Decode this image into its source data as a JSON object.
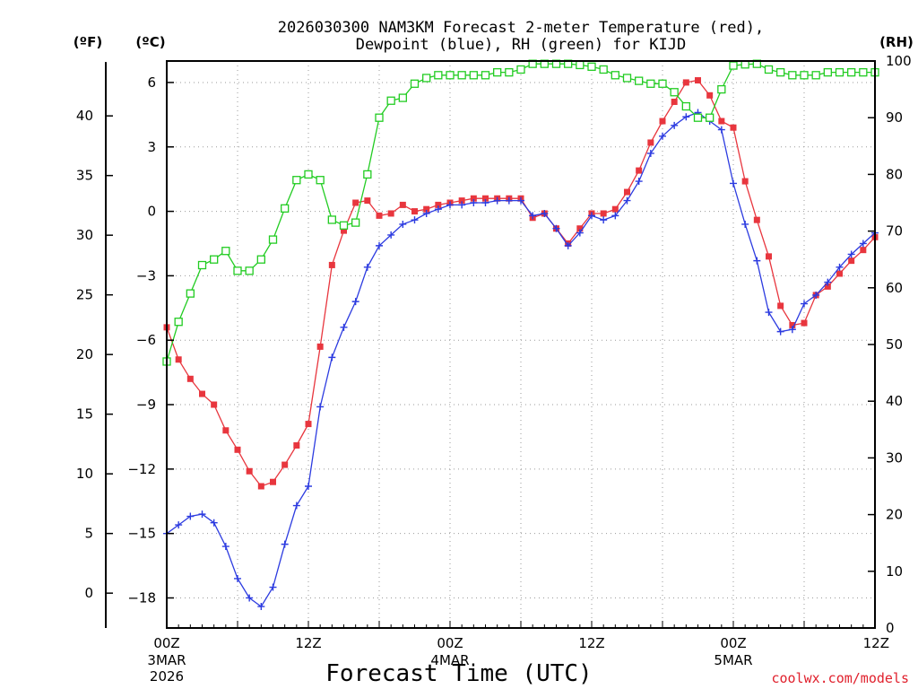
{
  "chart_data": {
    "type": "line",
    "title_line1": "2026030300 NAM3KM Forecast 2-meter Temperature (red),",
    "title_line2": "Dewpoint (blue), RH (green) for KIJD",
    "units": {
      "far": "(ºF)",
      "cel": "(ºC)",
      "rh": "(RH)"
    },
    "xlabel": "Forecast Time (UTC)",
    "credit": "coolwx.com/models",
    "x_range_hours": [
      0,
      60
    ],
    "x_ticks": [
      {
        "hour": 0,
        "label": "00Z",
        "date": "3MAR",
        "year": "2026"
      },
      {
        "hour": 12,
        "label": "12Z",
        "date": "",
        "year": ""
      },
      {
        "hour": 24,
        "label": "00Z",
        "date": "4MAR",
        "year": ""
      },
      {
        "hour": 36,
        "label": "12Z",
        "date": "",
        "year": ""
      },
      {
        "hour": 48,
        "label": "00Z",
        "date": "5MAR",
        "year": ""
      },
      {
        "hour": 60,
        "label": "12Z",
        "date": "",
        "year": ""
      }
    ],
    "celsius_range": [
      -19.4,
      7.0
    ],
    "celsius_ticks": [
      "6",
      "3",
      "0",
      "−3",
      "−6",
      "−9",
      "−12",
      "−15",
      "−18"
    ],
    "fahrenheit_ticks": [
      "40",
      "35",
      "30",
      "25",
      "20",
      "15",
      "10",
      "5",
      "0"
    ],
    "rh_range": [
      0,
      100
    ],
    "rh_ticks": [
      "100",
      "90",
      "80",
      "70",
      "60",
      "50",
      "40",
      "30",
      "20",
      "10",
      "0"
    ],
    "series": [
      {
        "name": "2-meter Temperature",
        "unit": "°C",
        "color": "#e8363e",
        "marker": "filled-square",
        "values": [
          -5.4,
          -6.9,
          -7.8,
          -8.5,
          -9.0,
          -10.2,
          -11.1,
          -12.1,
          -12.8,
          -12.6,
          -11.8,
          -10.9,
          -9.9,
          -6.3,
          -2.5,
          -0.9,
          0.4,
          0.5,
          -0.2,
          -0.1,
          0.3,
          0.0,
          0.1,
          0.3,
          0.4,
          0.5,
          0.6,
          0.6,
          0.6,
          0.6,
          0.6,
          -0.3,
          -0.1,
          -0.8,
          -1.5,
          -0.8,
          -0.1,
          -0.1,
          0.1,
          0.9,
          1.9,
          3.2,
          4.2,
          5.1,
          6.0,
          6.1,
          5.4,
          4.2,
          3.9,
          1.4,
          -0.4,
          -2.1,
          -4.4,
          -5.3,
          -5.2,
          -3.9,
          -3.5,
          -2.9,
          -2.3,
          -1.8,
          -1.2
        ]
      },
      {
        "name": "Dewpoint",
        "unit": "°C",
        "color": "#2c3be0",
        "marker": "plus",
        "values": [
          -15.0,
          -14.6,
          -14.2,
          -14.1,
          -14.5,
          -15.6,
          -17.1,
          -18.0,
          -18.4,
          -17.5,
          -15.5,
          -13.7,
          -12.8,
          -9.1,
          -6.8,
          -5.4,
          -4.2,
          -2.6,
          -1.6,
          -1.1,
          -0.6,
          -0.4,
          -0.1,
          0.1,
          0.3,
          0.3,
          0.4,
          0.4,
          0.5,
          0.5,
          0.5,
          -0.2,
          -0.1,
          -0.8,
          -1.6,
          -1.0,
          -0.2,
          -0.4,
          -0.2,
          0.5,
          1.4,
          2.7,
          3.5,
          4.0,
          4.4,
          4.6,
          4.2,
          3.8,
          1.3,
          -0.6,
          -2.3,
          -4.7,
          -5.6,
          -5.5,
          -4.3,
          -3.9,
          -3.3,
          -2.6,
          -2.0,
          -1.5,
          -1.0
        ]
      },
      {
        "name": "RH",
        "unit": "%",
        "color": "#22cc22",
        "marker": "open-square",
        "values": [
          47,
          54,
          59,
          64,
          65,
          66.5,
          63,
          63,
          65,
          68.5,
          74,
          79,
          80,
          79,
          72,
          71,
          71.5,
          80,
          90,
          93,
          93.5,
          96,
          97,
          97.5,
          97.5,
          97.5,
          97.5,
          97.5,
          98,
          98,
          98.5,
          99.5,
          99.5,
          99.5,
          99.5,
          99.3,
          99,
          98.5,
          97.5,
          97,
          96.5,
          96,
          96,
          94.5,
          92,
          90,
          90,
          95,
          99.2,
          99.4,
          99.5,
          98.5,
          98,
          97.5,
          97.5,
          97.5,
          98,
          98,
          98,
          98,
          98
        ]
      }
    ]
  }
}
